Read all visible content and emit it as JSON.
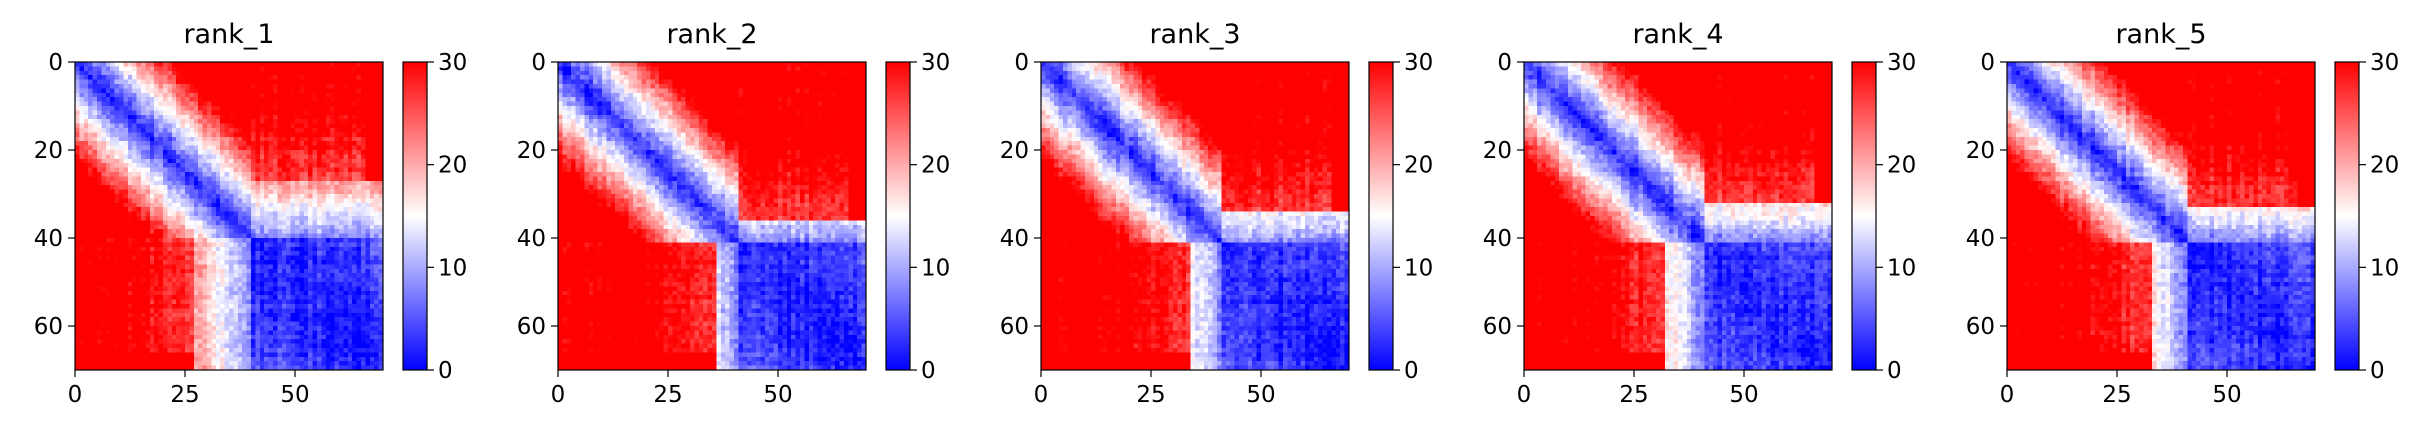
{
  "chart_data": {
    "type": "heatmap",
    "matrix_size": 70,
    "colormap": [
      "#0000ff",
      "#ffffff",
      "#ff0000"
    ],
    "color_range": [
      0,
      30
    ],
    "colorbar_ticks": [
      "0",
      "10",
      "20",
      "30"
    ],
    "x_ticks": [
      "0",
      "25",
      "50"
    ],
    "y_ticks": [
      "0",
      "20",
      "40",
      "60"
    ],
    "x_tick_values": [
      0,
      25,
      50
    ],
    "y_tick_values": [
      0,
      20,
      40,
      60
    ],
    "panels": [
      {
        "title": "rank_1",
        "domain_boundary": 40,
        "block_start": 27
      },
      {
        "title": "rank_2",
        "domain_boundary": 41,
        "block_start": 36
      },
      {
        "title": "rank_3",
        "domain_boundary": 41,
        "block_start": 34
      },
      {
        "title": "rank_4",
        "domain_boundary": 41,
        "block_start": 32
      },
      {
        "title": "rank_5",
        "domain_boundary": 41,
        "block_start": 33
      }
    ]
  }
}
